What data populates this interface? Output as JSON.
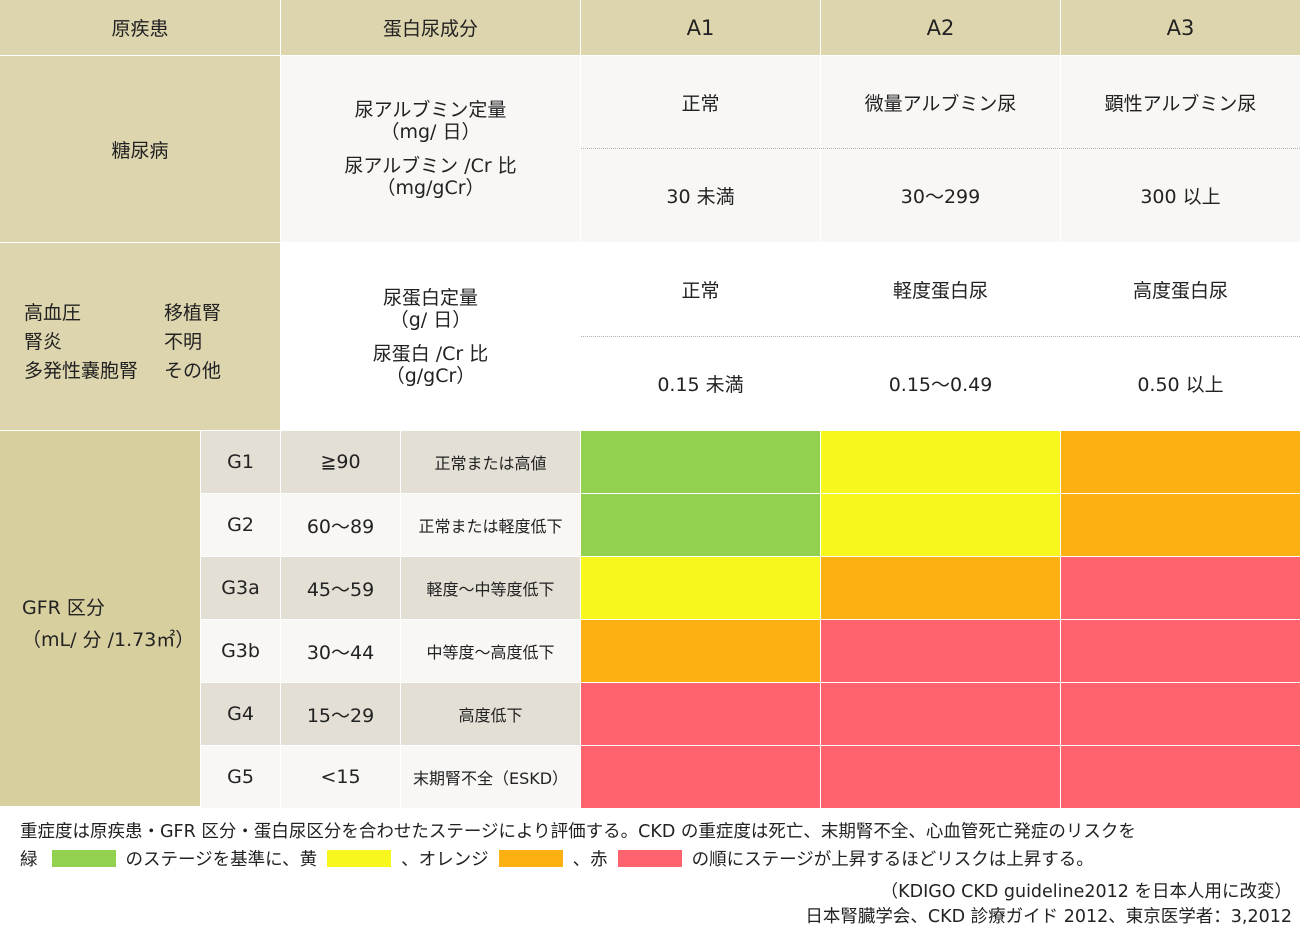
{
  "header": {
    "disease": "原疾患",
    "protein_category": "蛋白尿成分",
    "a1": "A1",
    "a2": "A2",
    "a3": "A3"
  },
  "diabetes": {
    "label": "糖尿病",
    "measure1_line1": "尿アルブミン定量",
    "measure1_line2": "（mg/ 日）",
    "measure2_line1": "尿アルブミン /Cr 比",
    "measure2_line2": "（mg/gCr）",
    "a1_label": "正常",
    "a2_label": "微量アルブミン尿",
    "a3_label": "顕性アルブミン尿",
    "a1_value": "30 未満",
    "a2_value": "30～299",
    "a3_value": "300 以上"
  },
  "other": {
    "diseases_left": [
      "高血圧",
      "腎炎",
      "多発性嚢胞腎"
    ],
    "diseases_right": [
      "移植腎",
      "不明",
      "その他"
    ],
    "measure1_line1": "尿蛋白定量",
    "measure1_line2": "（g/ 日）",
    "measure2_line1": "尿蛋白 /Cr 比",
    "measure2_line2": "（g/gCr）",
    "a1_label": "正常",
    "a2_label": "軽度蛋白尿",
    "a3_label": "高度蛋白尿",
    "a1_value": "0.15 未満",
    "a2_value": "0.15～0.49",
    "a3_value": "0.50 以上"
  },
  "gfr": {
    "label_line1": "GFR 区分",
    "label_line2": "（mL/ 分 /1.73㎡）",
    "rows": [
      {
        "grade": "G1",
        "range": "≧90",
        "desc": "正常または高値",
        "risk": [
          "green",
          "yellow",
          "orange"
        ]
      },
      {
        "grade": "G2",
        "range": "60～89",
        "desc": "正常または軽度低下",
        "risk": [
          "green",
          "yellow",
          "orange"
        ]
      },
      {
        "grade": "G3a",
        "range": "45～59",
        "desc": "軽度～中等度低下",
        "risk": [
          "yellow",
          "orange",
          "red"
        ]
      },
      {
        "grade": "G3b",
        "range": "30～44",
        "desc": "中等度～高度低下",
        "risk": [
          "orange",
          "red",
          "red"
        ]
      },
      {
        "grade": "G4",
        "range": "15～29",
        "desc": "高度低下",
        "risk": [
          "red",
          "red",
          "red"
        ]
      },
      {
        "grade": "G5",
        "range": "<15",
        "desc": "末期腎不全（ESKD）",
        "risk": [
          "red",
          "red",
          "red"
        ]
      }
    ]
  },
  "colors": {
    "green": "#92d050",
    "yellow": "#f7f71e",
    "orange": "#fdb012",
    "red": "#fe636e"
  },
  "footnote": {
    "line1": "重症度は原疾患・GFR 区分・蛋白尿区分を合わせたステージにより評価する。CKD の重症度は死亡、末期腎不全、心血管死亡発症のリスクを",
    "green_word": "緑",
    "after_green": "のステージを基準に、黄",
    "after_yellow": "、オレンジ",
    "after_orange": "、赤",
    "after_red": "の順にステージが上昇するほどリスクは上昇する。"
  },
  "source": {
    "line1": "（KDIGO CKD guideline2012 を日本人用に改変）",
    "line2": "日本腎臓学会、CKD 診療ガイド 2012、東京医学者：3,2012"
  }
}
